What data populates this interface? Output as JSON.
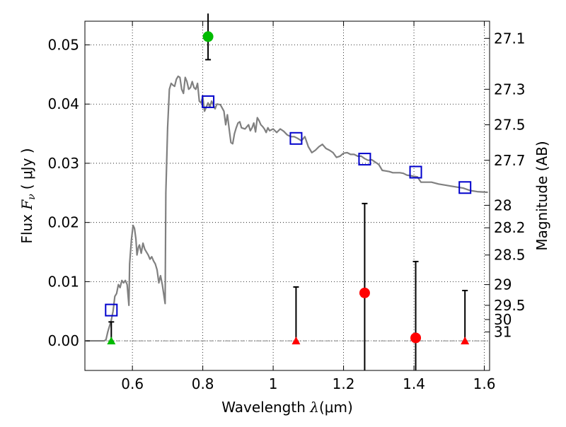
{
  "chart_data": {
    "type": "scatter",
    "xlabel": {
      "pre": "Wavelength ",
      "sym": "λ",
      "unit": "(μm)"
    },
    "ylabel": {
      "pre": "Flux ",
      "sym": "F",
      "sub": "ν",
      "unit": "( μJy )"
    },
    "y2label": "Magnitude (AB)",
    "xlim": [
      0.465,
      1.615
    ],
    "ylim": [
      -0.005,
      0.054
    ],
    "x_ticks": [
      {
        "value": 0.6,
        "label": "0.6"
      },
      {
        "value": 0.8,
        "label": "0.8"
      },
      {
        "value": 1.0,
        "label": "1"
      },
      {
        "value": 1.2,
        "label": "1.2"
      },
      {
        "value": 1.4,
        "label": "1.4"
      },
      {
        "value": 1.6,
        "label": "1.6"
      }
    ],
    "y_ticks": [
      {
        "value": 0.0,
        "label": "0.00"
      },
      {
        "value": 0.01,
        "label": "0.01"
      },
      {
        "value": 0.02,
        "label": "0.02"
      },
      {
        "value": 0.03,
        "label": "0.03"
      },
      {
        "value": 0.04,
        "label": "0.04"
      },
      {
        "value": 0.05,
        "label": "0.05"
      }
    ],
    "y2_ticks": [
      {
        "flux": 0.0511,
        "label": "27.1"
      },
      {
        "flux": 0.0425,
        "label": "27.3"
      },
      {
        "flux": 0.0365,
        "label": "27.5"
      },
      {
        "flux": 0.0305,
        "label": "27.7"
      },
      {
        "flux": 0.0229,
        "label": "28"
      },
      {
        "flux": 0.0191,
        "label": "28.2"
      },
      {
        "flux": 0.0145,
        "label": "28.5"
      },
      {
        "flux": 0.0095,
        "label": "29"
      },
      {
        "flux": 0.006,
        "label": "29.5"
      },
      {
        "flux": 0.0036,
        "label": "30"
      },
      {
        "flux": 0.0015,
        "label": "31"
      }
    ],
    "grid": true,
    "zero_line": true,
    "colors": {
      "spectrum": "#808080",
      "model": "#0000cc",
      "detection": "#ff0000",
      "green": "#00bb00",
      "errorbar": "#000000"
    },
    "spectrum": [
      [
        0.468,
        0.0
      ],
      [
        0.52,
        0.0
      ],
      [
        0.525,
        0.0002
      ],
      [
        0.53,
        0.0015
      ],
      [
        0.535,
        0.0025
      ],
      [
        0.54,
        0.0035
      ],
      [
        0.545,
        0.005
      ],
      [
        0.55,
        0.0075
      ],
      [
        0.555,
        0.008
      ],
      [
        0.56,
        0.0095
      ],
      [
        0.565,
        0.009
      ],
      [
        0.57,
        0.0102
      ],
      [
        0.575,
        0.0098
      ],
      [
        0.58,
        0.0102
      ],
      [
        0.585,
        0.0095
      ],
      [
        0.59,
        0.006
      ],
      [
        0.592,
        0.013
      ],
      [
        0.597,
        0.017
      ],
      [
        0.602,
        0.0195
      ],
      [
        0.606,
        0.019
      ],
      [
        0.61,
        0.0172
      ],
      [
        0.613,
        0.0145
      ],
      [
        0.617,
        0.0158
      ],
      [
        0.62,
        0.0162
      ],
      [
        0.625,
        0.0148
      ],
      [
        0.63,
        0.0165
      ],
      [
        0.635,
        0.0155
      ],
      [
        0.64,
        0.015
      ],
      [
        0.645,
        0.0145
      ],
      [
        0.65,
        0.0138
      ],
      [
        0.655,
        0.0142
      ],
      [
        0.66,
        0.0135
      ],
      [
        0.665,
        0.013
      ],
      [
        0.67,
        0.012
      ],
      [
        0.675,
        0.0098
      ],
      [
        0.68,
        0.011
      ],
      [
        0.685,
        0.0095
      ],
      [
        0.69,
        0.0075
      ],
      [
        0.693,
        0.0063
      ],
      [
        0.695,
        0.025
      ],
      [
        0.7,
        0.036
      ],
      [
        0.705,
        0.0425
      ],
      [
        0.71,
        0.0435
      ],
      [
        0.715,
        0.0432
      ],
      [
        0.72,
        0.043
      ],
      [
        0.725,
        0.0442
      ],
      [
        0.73,
        0.0447
      ],
      [
        0.735,
        0.0445
      ],
      [
        0.74,
        0.0425
      ],
      [
        0.745,
        0.0418
      ],
      [
        0.75,
        0.0445
      ],
      [
        0.755,
        0.0438
      ],
      [
        0.76,
        0.0425
      ],
      [
        0.765,
        0.0428
      ],
      [
        0.77,
        0.0438
      ],
      [
        0.775,
        0.0428
      ],
      [
        0.78,
        0.0425
      ],
      [
        0.785,
        0.0435
      ],
      [
        0.79,
        0.0405
      ],
      [
        0.795,
        0.0402
      ],
      [
        0.8,
        0.0412
      ],
      [
        0.805,
        0.0388
      ],
      [
        0.81,
        0.0395
      ],
      [
        0.815,
        0.0402
      ],
      [
        0.82,
        0.0395
      ],
      [
        0.825,
        0.0405
      ],
      [
        0.83,
        0.0398
      ],
      [
        0.835,
        0.0392
      ],
      [
        0.84,
        0.04
      ],
      [
        0.85,
        0.0399
      ],
      [
        0.86,
        0.0388
      ],
      [
        0.865,
        0.0365
      ],
      [
        0.87,
        0.0382
      ],
      [
        0.875,
        0.0358
      ],
      [
        0.88,
        0.0335
      ],
      [
        0.885,
        0.0333
      ],
      [
        0.89,
        0.035
      ],
      [
        0.895,
        0.036
      ],
      [
        0.9,
        0.0368
      ],
      [
        0.905,
        0.037
      ],
      [
        0.91,
        0.036
      ],
      [
        0.92,
        0.0358
      ],
      [
        0.93,
        0.0365
      ],
      [
        0.935,
        0.0355
      ],
      [
        0.94,
        0.036
      ],
      [
        0.945,
        0.0368
      ],
      [
        0.95,
        0.0353
      ],
      [
        0.955,
        0.0377
      ],
      [
        0.96,
        0.0372
      ],
      [
        0.965,
        0.0365
      ],
      [
        0.97,
        0.0362
      ],
      [
        0.975,
        0.0358
      ],
      [
        0.98,
        0.0352
      ],
      [
        0.985,
        0.036
      ],
      [
        0.99,
        0.0355
      ],
      [
        1.0,
        0.0358
      ],
      [
        1.01,
        0.0352
      ],
      [
        1.02,
        0.0358
      ],
      [
        1.03,
        0.0354
      ],
      [
        1.04,
        0.0348
      ],
      [
        1.05,
        0.0345
      ],
      [
        1.06,
        0.0345
      ],
      [
        1.07,
        0.0342
      ],
      [
        1.08,
        0.0338
      ],
      [
        1.09,
        0.0345
      ],
      [
        1.1,
        0.0328
      ],
      [
        1.11,
        0.0318
      ],
      [
        1.12,
        0.0322
      ],
      [
        1.13,
        0.0328
      ],
      [
        1.14,
        0.0332
      ],
      [
        1.15,
        0.0325
      ],
      [
        1.16,
        0.0322
      ],
      [
        1.17,
        0.0318
      ],
      [
        1.18,
        0.031
      ],
      [
        1.19,
        0.0312
      ],
      [
        1.2,
        0.0317
      ],
      [
        1.21,
        0.0318
      ],
      [
        1.22,
        0.0315
      ],
      [
        1.23,
        0.0315
      ],
      [
        1.24,
        0.0312
      ],
      [
        1.25,
        0.0312
      ],
      [
        1.26,
        0.0308
      ],
      [
        1.27,
        0.0305
      ],
      [
        1.28,
        0.0306
      ],
      [
        1.29,
        0.0302
      ],
      [
        1.3,
        0.0298
      ],
      [
        1.31,
        0.0288
      ],
      [
        1.32,
        0.0287
      ],
      [
        1.33,
        0.0286
      ],
      [
        1.34,
        0.0284
      ],
      [
        1.35,
        0.0284
      ],
      [
        1.36,
        0.0284
      ],
      [
        1.37,
        0.0283
      ],
      [
        1.38,
        0.028
      ],
      [
        1.39,
        0.0279
      ],
      [
        1.4,
        0.0278
      ],
      [
        1.41,
        0.0277
      ],
      [
        1.42,
        0.0268
      ],
      [
        1.44,
        0.0268
      ],
      [
        1.45,
        0.0268
      ],
      [
        1.47,
        0.0265
      ],
      [
        1.49,
        0.0263
      ],
      [
        1.5,
        0.0262
      ],
      [
        1.52,
        0.026
      ],
      [
        1.54,
        0.0258
      ],
      [
        1.56,
        0.0254
      ],
      [
        1.58,
        0.0252
      ],
      [
        1.61,
        0.0251
      ]
    ],
    "model_points": [
      {
        "x": 0.54,
        "y": 0.0052
      },
      {
        "x": 0.815,
        "y": 0.0404
      },
      {
        "x": 1.065,
        "y": 0.0342
      },
      {
        "x": 1.26,
        "y": 0.0307
      },
      {
        "x": 1.405,
        "y": 0.0285
      },
      {
        "x": 1.545,
        "y": 0.0259
      }
    ],
    "detections": [
      {
        "x": 0.815,
        "y": 0.0514,
        "yerr_low": 0.0039,
        "yerr_high": 0.0039,
        "color": "green"
      },
      {
        "x": 1.26,
        "y": 0.0081,
        "yerr_low": 0.0151,
        "yerr_high": 0.0151,
        "color": "red"
      },
      {
        "x": 1.405,
        "y": 0.0005,
        "yerr_low": 0.0129,
        "yerr_high": 0.0129,
        "color": "red"
      }
    ],
    "upper_limits": [
      {
        "x": 0.54,
        "y": 0.0,
        "upper": 0.0032,
        "color": "green"
      },
      {
        "x": 1.065,
        "y": 0.0,
        "upper": 0.0091,
        "color": "red"
      },
      {
        "x": 1.545,
        "y": 0.0,
        "upper": 0.0085,
        "color": "red"
      }
    ]
  }
}
